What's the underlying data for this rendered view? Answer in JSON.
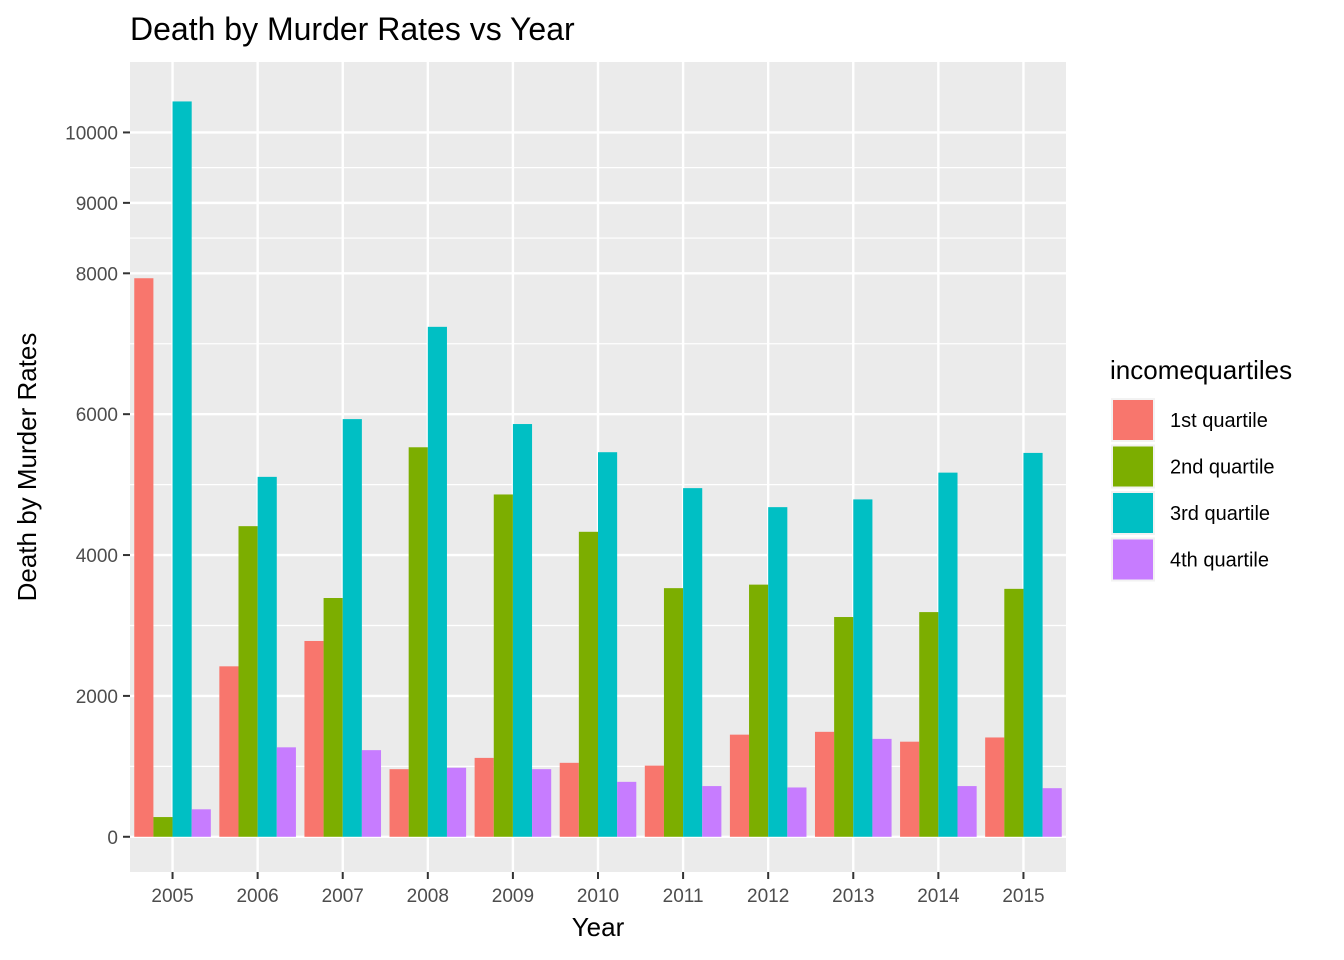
{
  "chart_data": {
    "type": "bar",
    "title": "Death by Murder Rates vs Year",
    "xlabel": "Year",
    "ylabel": "Death by Murder Rates",
    "categories": [
      "2005",
      "2006",
      "2007",
      "2008",
      "2009",
      "2010",
      "2011",
      "2012",
      "2013",
      "2014",
      "2015"
    ],
    "yticks": [
      0,
      2000,
      4000,
      6000,
      8000,
      9000,
      10000
    ],
    "ylim": [
      -500,
      11000
    ],
    "grid": true,
    "legend": {
      "title": "incomequartiles",
      "position": "right"
    },
    "series": [
      {
        "name": "1st quartile",
        "color": "#F8766D",
        "values": [
          7930,
          2420,
          2780,
          960,
          1120,
          1050,
          1010,
          1450,
          1490,
          1350,
          1410
        ]
      },
      {
        "name": "2nd quartile",
        "color": "#7CAE00",
        "values": [
          280,
          4410,
          3390,
          5530,
          4860,
          4330,
          3530,
          3580,
          3120,
          3190,
          3520
        ]
      },
      {
        "name": "3rd quartile",
        "color": "#00BFC4",
        "values": [
          10440,
          5110,
          5930,
          7240,
          5860,
          5460,
          4950,
          4680,
          4790,
          5170,
          5450
        ]
      },
      {
        "name": "4th quartile",
        "color": "#C77CFF",
        "values": [
          390,
          1270,
          1230,
          980,
          960,
          780,
          720,
          700,
          1390,
          720,
          690
        ]
      }
    ]
  }
}
